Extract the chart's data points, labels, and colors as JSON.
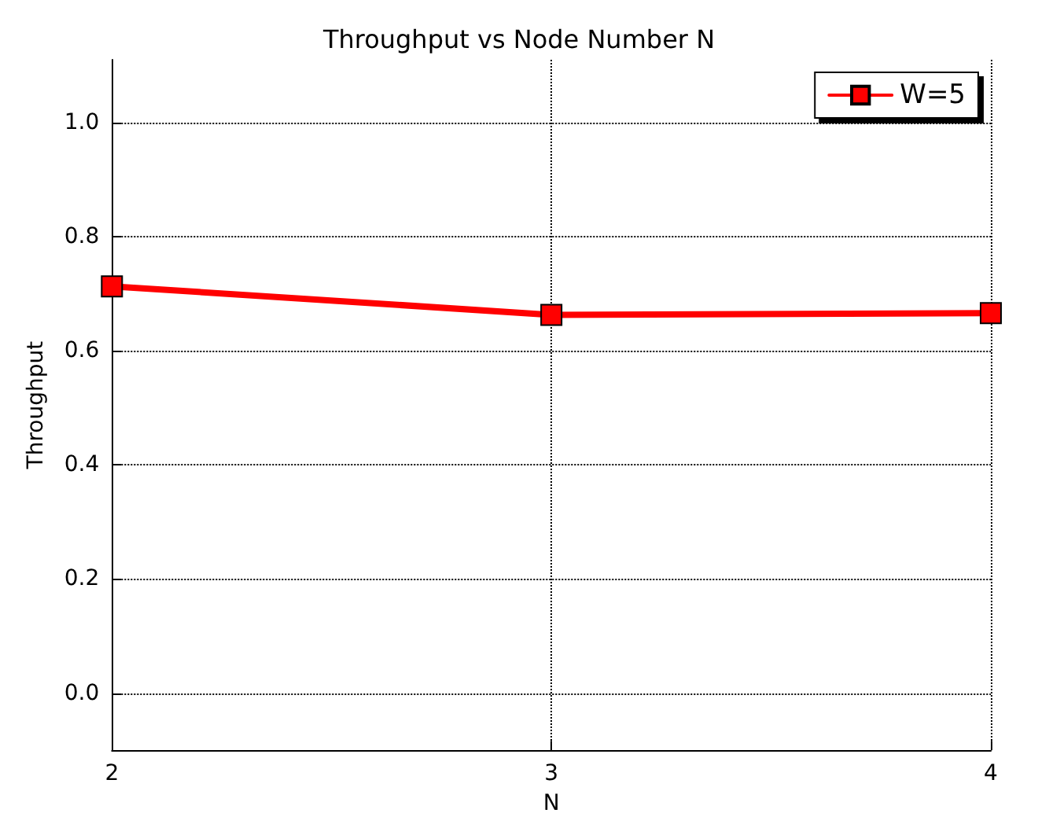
{
  "chart_data": {
    "type": "line",
    "title": "Throughput vs Node Number N",
    "xlabel": "N",
    "ylabel": "Throughput",
    "x": [
      2,
      3,
      4
    ],
    "series": [
      {
        "name": "W=5",
        "color": "#ff0000",
        "values": [
          0.713,
          0.663,
          0.666
        ]
      }
    ],
    "xlim": [
      2,
      4
    ],
    "xticks": [
      2,
      3,
      4
    ],
    "ylim": [
      -0.1,
      1.11
    ],
    "yticks": [
      {
        "value": 0,
        "label": "0.0"
      },
      {
        "value": 0.2,
        "label": "0.2"
      },
      {
        "value": 0.4,
        "label": "0.4"
      },
      {
        "value": 0.6,
        "label": "0.6"
      },
      {
        "value": 0.8,
        "label": "0.8"
      },
      {
        "value": 1,
        "label": "1.0"
      }
    ],
    "grid": true,
    "legend": "top right",
    "marker": "square",
    "line_style": "solid"
  }
}
